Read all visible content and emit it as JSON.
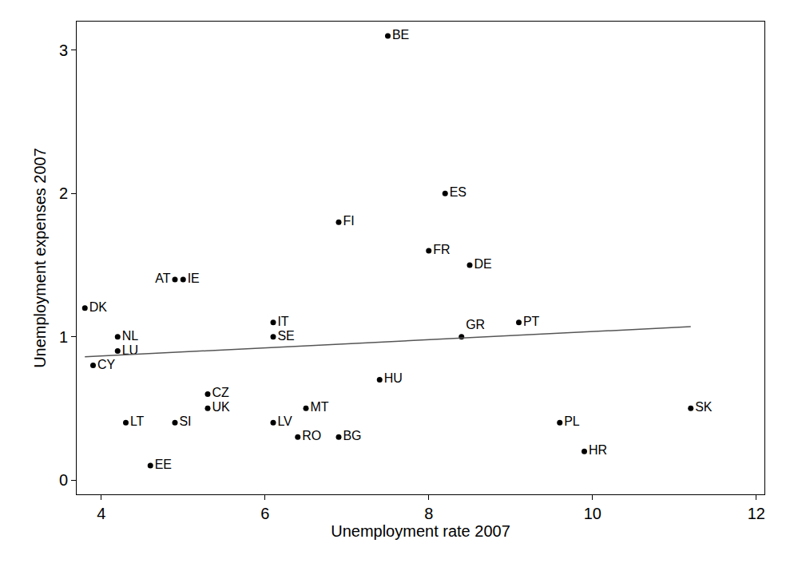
{
  "chart_data": {
    "type": "scatter",
    "x_label": "Unemployment rate 2007",
    "y_label": "Unemployment expenses 2007",
    "series": [
      {
        "type": "scatter",
        "color": "#000000",
        "marker": "circle",
        "labels": [
          "DK",
          "CY",
          "NL",
          "LU",
          "LT",
          "EE",
          "AT",
          "IE",
          "SI",
          "CZ",
          "UK",
          "IT",
          "SE",
          "LV",
          "RO",
          "MT",
          "FI",
          "BG",
          "HU",
          "BE",
          "FR",
          "ES",
          "GR",
          "DE",
          "PT",
          "PL",
          "HR",
          "SK"
        ],
        "x": [
          3.8,
          3.9,
          4.2,
          4.2,
          4.3,
          4.6,
          4.9,
          5.0,
          4.9,
          5.3,
          5.3,
          6.1,
          6.1,
          6.1,
          6.4,
          6.5,
          6.9,
          6.9,
          7.4,
          7.5,
          8.0,
          8.2,
          8.4,
          8.5,
          9.1,
          9.6,
          9.9,
          11.2
        ],
        "values": [
          1.2,
          0.8,
          1.0,
          0.9,
          0.4,
          0.1,
          1.4,
          1.4,
          0.4,
          0.6,
          0.5,
          1.1,
          1.0,
          0.4,
          0.3,
          0.5,
          1.8,
          0.3,
          0.7,
          3.1,
          1.6,
          2.0,
          1.0,
          1.5,
          1.1,
          0.4,
          0.2,
          0.5
        ]
      },
      {
        "type": "line",
        "color": "#555555",
        "line_style": "solid",
        "x": [
          3.8,
          11.2
        ],
        "values": [
          0.86,
          1.07
        ]
      }
    ],
    "xlim": [
      3.7,
      12.1
    ],
    "xticks": [
      4,
      6,
      8,
      10,
      12
    ],
    "ylim": [
      -0.1,
      3.2
    ],
    "yticks": [
      0,
      1,
      2,
      3
    ],
    "grid": false
  }
}
